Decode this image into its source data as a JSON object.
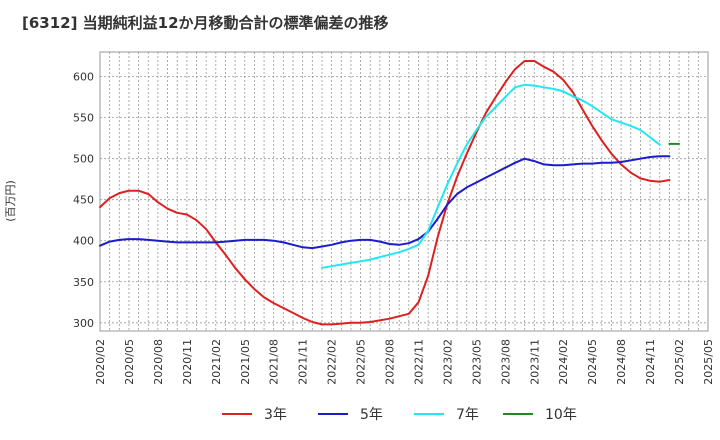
{
  "chart_data": {
    "type": "line",
    "title": "[6312]  当期純利益12か月移動合計の標準偏差の推移",
    "xlabel": "",
    "ylabel": "(百万円)",
    "ylim": [
      290,
      630
    ],
    "yticks": [
      300,
      350,
      400,
      450,
      500,
      550,
      600
    ],
    "x_start": "2020-02",
    "x_end": "2025-05",
    "xticks": [
      "2020/02",
      "2020/05",
      "2020/08",
      "2020/11",
      "2021/02",
      "2021/05",
      "2021/08",
      "2021/11",
      "2022/02",
      "2022/05",
      "2022/08",
      "2022/11",
      "2023/02",
      "2023/05",
      "2023/08",
      "2023/11",
      "2024/02",
      "2024/05",
      "2024/08",
      "2024/11",
      "2025/02",
      "2025/05"
    ],
    "grid": true,
    "legend_position": "bottom",
    "series": [
      {
        "name": "3年",
        "color": "#dd2020",
        "start": "2020-02",
        "values": [
          441,
          452,
          458,
          461,
          461,
          457,
          447,
          439,
          434,
          432,
          425,
          414,
          398,
          383,
          367,
          353,
          341,
          331,
          324,
          318,
          312,
          306,
          301,
          298,
          298,
          299,
          300,
          300,
          301,
          303,
          305,
          308,
          311,
          325,
          357,
          405,
          445,
          478,
          506,
          532,
          556,
          575,
          593,
          609,
          619,
          619,
          612,
          606,
          596,
          581,
          560,
          540,
          522,
          506,
          493,
          483,
          476,
          473,
          472,
          474
        ]
      },
      {
        "name": "5年",
        "color": "#1c1ccc",
        "start": "2020-02",
        "values": [
          394,
          399,
          401,
          402,
          402,
          401,
          400,
          399,
          398,
          398,
          398,
          398,
          398,
          399,
          400,
          401,
          401,
          401,
          400,
          398,
          395,
          392,
          391,
          393,
          395,
          398,
          400,
          401,
          401,
          399,
          396,
          395,
          397,
          402,
          411,
          427,
          444,
          457,
          465,
          471,
          477,
          483,
          489,
          495,
          500,
          497,
          493,
          492,
          492,
          493,
          494,
          494,
          495,
          495,
          496,
          498,
          500,
          502,
          503,
          503
        ]
      },
      {
        "name": "7年",
        "color": "#22e6f0",
        "start": "2022-01",
        "values": [
          367,
          369,
          371,
          373,
          375,
          377,
          380,
          383,
          386,
          390,
          395,
          412,
          441,
          469,
          494,
          517,
          535,
          551,
          563,
          575,
          587,
          590,
          589,
          587,
          585,
          582,
          576,
          571,
          564,
          556,
          548,
          544,
          540,
          535,
          526,
          517
        ]
      },
      {
        "name": "10年",
        "color": "#228822",
        "start": "2025-01",
        "values": [
          518,
          518
        ]
      }
    ]
  }
}
